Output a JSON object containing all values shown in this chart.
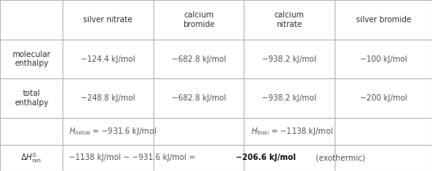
{
  "col_headers": [
    "",
    "silver nitrate",
    "calcium\nbromide",
    "calcium\nnitrate",
    "silver bromide"
  ],
  "row1_label": "molecular\nenthalpy",
  "row1_data": [
    "−124.4 kJ/mol",
    "−682.8 kJ/mol",
    "−938.2 kJ/mol",
    "−100 kJ/mol"
  ],
  "row2_label": "total\nenthalpy",
  "row2_data": [
    "−248.8 kJ/mol",
    "−682.8 kJ/mol",
    "−938.2 kJ/mol",
    "−200 kJ/mol"
  ],
  "row4_text_plain": "−1138 kJ/mol − −931.6 kJ/mol = ",
  "row4_bold": "−206.6 kJ/mol",
  "row4_suffix": " (exothermic)",
  "background": "#ffffff",
  "line_color": "#bbbbbb",
  "text_color": "#555555",
  "label_color": "#333333",
  "bold_color": "#111111",
  "fig_width": 5.46,
  "fig_height": 2.16,
  "dpi": 100
}
